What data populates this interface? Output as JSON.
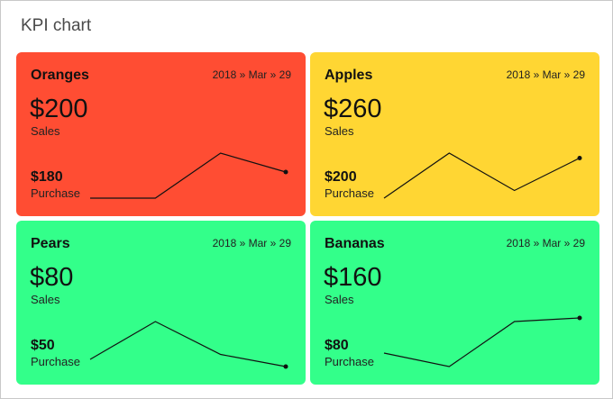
{
  "title": "KPI chart",
  "cards": [
    {
      "name": "Oranges",
      "date": "2018 » Mar » 29",
      "sales_value": "$200",
      "sales_label": "Sales",
      "purchase_value": "$180",
      "purchase_label": "Purchase",
      "color": "#ff4d33"
    },
    {
      "name": "Apples",
      "date": "2018 » Mar » 29",
      "sales_value": "$260",
      "sales_label": "Sales",
      "purchase_value": "$200",
      "purchase_label": "Purchase",
      "color": "#ffd633"
    },
    {
      "name": "Pears",
      "date": "2018 » Mar » 29",
      "sales_value": "$80",
      "sales_label": "Sales",
      "purchase_value": "$50",
      "purchase_label": "Purchase",
      "color": "#33ff8a"
    },
    {
      "name": "Bananas",
      "date": "2018 » Mar » 29",
      "sales_value": "$160",
      "sales_label": "Sales",
      "purchase_value": "$80",
      "purchase_label": "Purchase",
      "color": "#33ff8a"
    }
  ],
  "chart_data": [
    {
      "type": "line",
      "name": "Oranges",
      "values": [
        0,
        0,
        1,
        0.58
      ]
    },
    {
      "type": "line",
      "name": "Apples",
      "values": [
        0,
        1,
        0.17,
        0.89
      ]
    },
    {
      "type": "line",
      "name": "Pears",
      "values": [
        0.16,
        1,
        0.27,
        0
      ]
    },
    {
      "type": "line",
      "name": "Bananas",
      "values": [
        0.3,
        0,
        1,
        1.08
      ]
    }
  ]
}
